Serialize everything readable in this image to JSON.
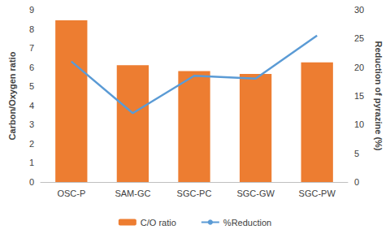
{
  "chart_data": {
    "type": "bar",
    "categories": [
      "OSC-P",
      "SAM-GC",
      "SGC-PC",
      "SGC-GW",
      "SGC-PW"
    ],
    "series": [
      {
        "name": "C/O ratio",
        "type": "bar",
        "color": "#ed7d31",
        "values": [
          8.45,
          6.1,
          5.8,
          5.65,
          6.25
        ]
      },
      {
        "name": "%Reduction",
        "type": "line",
        "axis": "y2",
        "color": "#5b9bd5",
        "values": [
          21,
          12,
          18.5,
          18,
          25.5
        ]
      }
    ],
    "y_label": "Carbon/Oxygen ratio",
    "y2_label": "Reduction of pyrazine (%)",
    "ylim": [
      0,
      9
    ],
    "yticks": [
      0,
      1,
      2,
      3,
      4,
      5,
      6,
      7,
      8,
      9
    ],
    "y2lim": [
      0,
      30
    ],
    "y2ticks": [
      0,
      5,
      10,
      15,
      20,
      25,
      30
    ],
    "grid": false,
    "legend": "bottom"
  }
}
